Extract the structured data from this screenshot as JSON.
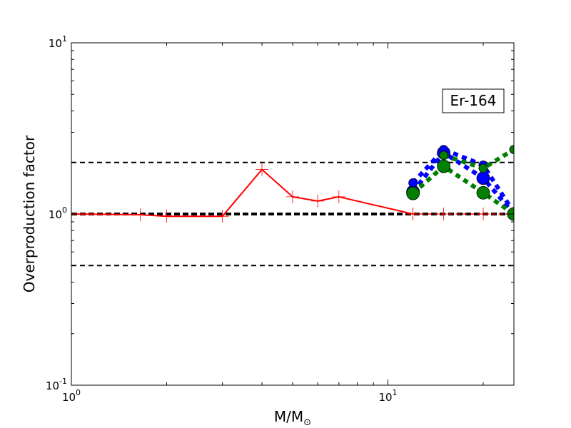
{
  "chart_data": {
    "type": "line",
    "title": "",
    "xlabel": "M/M",
    "xlabel_subscript": "⊙",
    "ylabel": "Overproduction factor",
    "xscale": "log",
    "yscale": "log",
    "xlim": [
      1,
      25
    ],
    "ylim": [
      0.1,
      10
    ],
    "x_ticks": [
      {
        "value": 1,
        "base": "10",
        "exp": "0"
      },
      {
        "value": 10,
        "base": "10",
        "exp": "1"
      }
    ],
    "y_ticks": [
      {
        "value": 0.1,
        "base": "10",
        "exp": "-1"
      },
      {
        "value": 1,
        "base": "10",
        "exp": "0"
      },
      {
        "value": 10,
        "base": "10",
        "exp": "1"
      }
    ],
    "annotation": "Er-164",
    "reference_lines": [
      {
        "y": 2.0,
        "style": "dashed",
        "weight": "thin"
      },
      {
        "y": 1.0,
        "style": "dashed",
        "weight": "thick"
      },
      {
        "y": 0.5,
        "style": "dashed",
        "weight": "thin"
      }
    ],
    "series": [
      {
        "color": "#ff0000",
        "line": "solid",
        "marker": "plus",
        "x": [
          1.0,
          1.65,
          2.0,
          3.0,
          4.0,
          5.0,
          6.0,
          7.0,
          12.0
        ],
        "y": [
          1.0,
          0.99,
          0.97,
          0.97,
          1.82,
          1.26,
          1.19,
          1.26,
          1.0
        ]
      },
      {
        "color": "#ff0000",
        "line": "dashed",
        "marker": "plus",
        "x": [
          12.0,
          15.0,
          20.0,
          25.0
        ],
        "y": [
          1.0,
          1.0,
          1.0,
          1.0
        ]
      },
      {
        "color": "#0000ff",
        "line": "dotted",
        "marker": "circle-large",
        "x": [
          12.0,
          15.0,
          20.0,
          25.0
        ],
        "y": [
          1.35,
          2.28,
          1.62,
          1.0
        ]
      },
      {
        "color": "#0000ff",
        "line": "dotted",
        "marker": "circle-small",
        "x": [
          12.0,
          15.0,
          20.0,
          25.0
        ],
        "y": [
          1.52,
          2.38,
          1.93,
          1.02
        ]
      },
      {
        "color": "#008000",
        "line": "dotted",
        "marker": "circle-large",
        "x": [
          12.0,
          15.0,
          20.0,
          25.0
        ],
        "y": [
          1.32,
          1.9,
          1.33,
          1.0
        ]
      },
      {
        "color": "#008000",
        "line": "dotted",
        "marker": "circle-small",
        "x": [
          15.0,
          20.0,
          25.0
        ],
        "y": [
          2.2,
          1.85,
          2.38
        ]
      }
    ]
  }
}
